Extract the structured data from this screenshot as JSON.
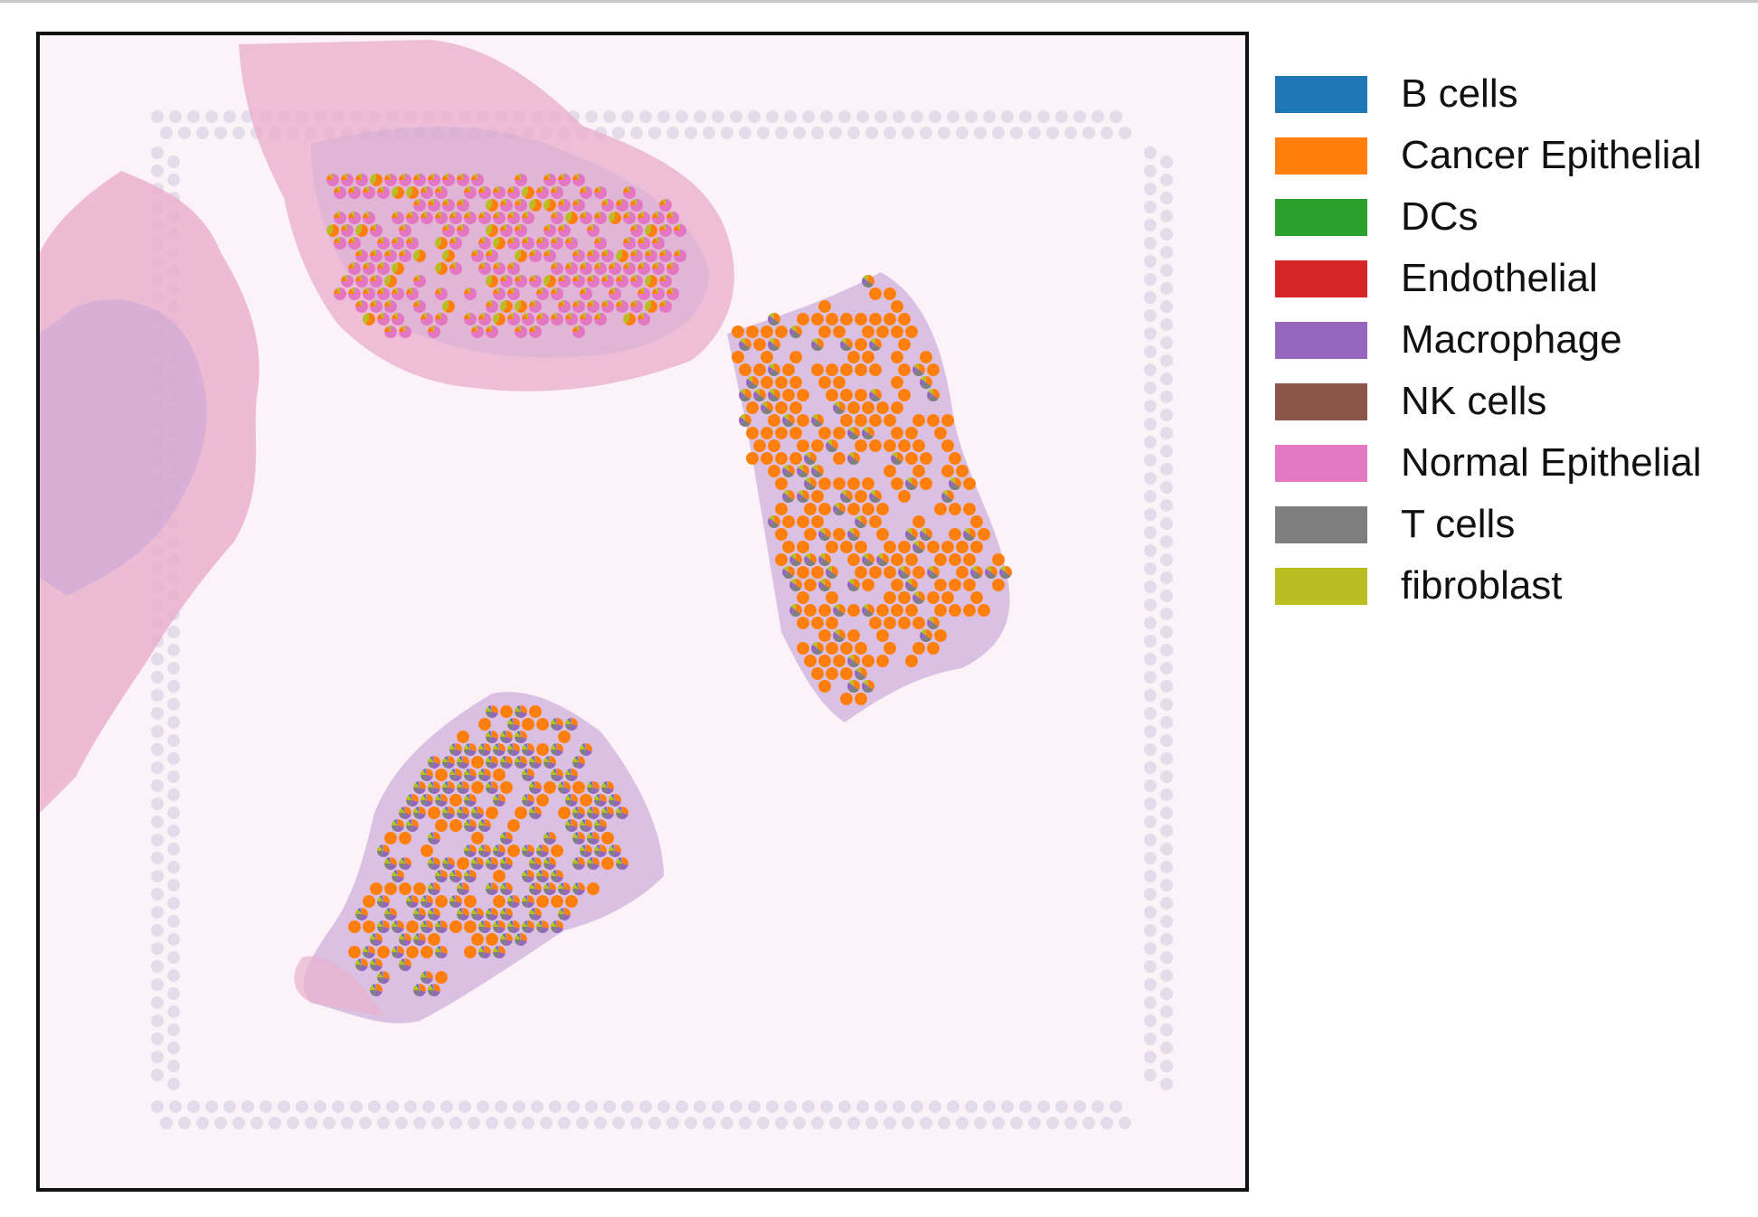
{
  "legend": {
    "items": [
      {
        "label": "B cells",
        "color": "#1f77b4"
      },
      {
        "label": "Cancer Epithelial",
        "color": "#ff7f0e"
      },
      {
        "label": "DCs",
        "color": "#2ca02c"
      },
      {
        "label": "Endothelial",
        "color": "#d62728"
      },
      {
        "label": "Macrophage",
        "color": "#9467bd"
      },
      {
        "label": "NK cells",
        "color": "#8c564b"
      },
      {
        "label": "Normal Epithelial",
        "color": "#e377c2"
      },
      {
        "label": "T cells",
        "color": "#7f7f7f"
      },
      {
        "label": "fibroblast",
        "color": "#bcbd22"
      }
    ]
  },
  "colors": {
    "background": "#fcf3f8",
    "frame_border": "#111111",
    "tissue_pink": "#eab0cd",
    "tissue_purple": "#c7a6d8",
    "fiducial": "#e3dcea"
  },
  "regions": [
    {
      "name": "top-left-region",
      "dominant": "Normal Epithelial"
    },
    {
      "name": "right-region",
      "dominant": "Cancer Epithelial"
    },
    {
      "name": "bottom-region",
      "dominant": "mixed"
    }
  ]
}
